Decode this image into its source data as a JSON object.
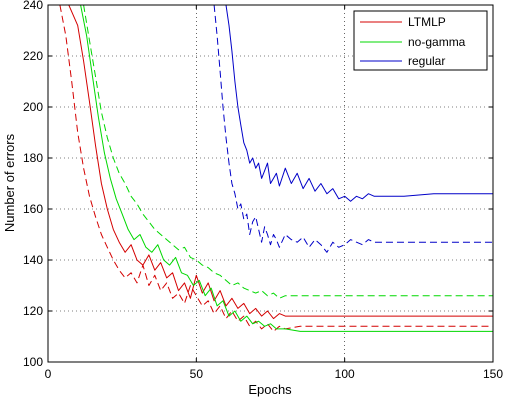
{
  "chart_data": {
    "type": "line",
    "title": "",
    "xlabel": "Epochs",
    "ylabel": "Number of errors",
    "xlim": [
      0,
      150
    ],
    "ylim": [
      100,
      240
    ],
    "xticks": [
      "0",
      "50",
      "100",
      "150"
    ],
    "yticks": [
      "100",
      "120",
      "140",
      "160",
      "180",
      "200",
      "220",
      "240"
    ],
    "grid": true,
    "legend_position": "top-right",
    "legend": [
      {
        "label": "LTMLP",
        "color": "#d40000"
      },
      {
        "label": "no-gamma",
        "color": "#00d800"
      },
      {
        "label": "regular",
        "color": "#0000c8"
      }
    ],
    "series": [
      {
        "name": "LTMLP",
        "style": "solid",
        "color": "#d40000",
        "x": [
          7,
          10,
          12,
          14,
          16,
          18,
          20,
          22,
          24,
          26,
          28,
          30,
          32,
          34,
          36,
          38,
          40,
          42,
          44,
          46,
          48,
          50,
          52,
          54,
          56,
          58,
          60,
          62,
          64,
          66,
          68,
          70,
          72,
          74,
          76,
          78,
          80,
          85,
          90,
          95,
          100,
          110,
          120,
          130,
          140,
          150
        ],
        "y": [
          240,
          232,
          218,
          202,
          185,
          170,
          160,
          152,
          147,
          143,
          146,
          140,
          138,
          142,
          136,
          139,
          133,
          135,
          128,
          131,
          125,
          134,
          127,
          131,
          124,
          128,
          122,
          125,
          121,
          123,
          119,
          121,
          118,
          120,
          117,
          119,
          118,
          118,
          118,
          118,
          118,
          118,
          118,
          118,
          118,
          118
        ]
      },
      {
        "name": "LTMLP",
        "style": "dashed",
        "color": "#d40000",
        "x": [
          4,
          6,
          8,
          10,
          12,
          14,
          16,
          18,
          20,
          22,
          24,
          26,
          28,
          30,
          32,
          34,
          36,
          38,
          40,
          42,
          44,
          46,
          48,
          50,
          52,
          54,
          56,
          58,
          60,
          62,
          64,
          66,
          68,
          70,
          72,
          74,
          76,
          78,
          80,
          85,
          90,
          95,
          100,
          110,
          120,
          130,
          140,
          150
        ],
        "y": [
          240,
          228,
          210,
          190,
          176,
          165,
          157,
          150,
          145,
          140,
          136,
          133,
          135,
          131,
          138,
          130,
          134,
          128,
          131,
          125,
          127,
          123,
          130,
          126,
          122,
          124,
          119,
          122,
          117,
          120,
          116,
          118,
          114,
          116,
          113,
          115,
          112,
          114,
          113,
          114,
          114,
          114,
          114,
          114,
          114,
          114,
          114,
          114
        ]
      },
      {
        "name": "no-gamma",
        "style": "solid",
        "color": "#00d800",
        "x": [
          11,
          13,
          15,
          17,
          19,
          21,
          23,
          25,
          27,
          29,
          31,
          33,
          35,
          37,
          39,
          41,
          43,
          45,
          47,
          49,
          51,
          53,
          55,
          57,
          59,
          61,
          63,
          65,
          67,
          69,
          71,
          73,
          75,
          77,
          80,
          85,
          90,
          95,
          100,
          110,
          120,
          130,
          140,
          150
        ],
        "y": [
          240,
          228,
          212,
          196,
          182,
          172,
          164,
          158,
          152,
          148,
          150,
          145,
          143,
          146,
          140,
          138,
          141,
          135,
          134,
          130,
          132,
          126,
          129,
          122,
          124,
          118,
          120,
          116,
          118,
          115,
          116,
          114,
          115,
          113,
          113,
          112,
          112,
          112,
          112,
          112,
          112,
          112,
          112,
          112
        ]
      },
      {
        "name": "no-gamma",
        "style": "dashed",
        "color": "#00d800",
        "x": [
          12,
          14,
          16,
          18,
          20,
          22,
          24,
          26,
          28,
          30,
          32,
          34,
          36,
          38,
          40,
          42,
          44,
          46,
          48,
          50,
          52,
          54,
          56,
          58,
          60,
          62,
          64,
          66,
          68,
          70,
          72,
          74,
          76,
          78,
          80,
          85,
          90,
          95,
          100,
          110,
          120,
          130,
          140,
          150
        ],
        "y": [
          240,
          226,
          212,
          198,
          188,
          180,
          174,
          170,
          165,
          162,
          158,
          155,
          152,
          150,
          148,
          146,
          144,
          145,
          141,
          140,
          138,
          137,
          135,
          134,
          132,
          130,
          131,
          129,
          128,
          127,
          128,
          126,
          127,
          125,
          126,
          126,
          126,
          126,
          126,
          126,
          126,
          126,
          126,
          126
        ]
      },
      {
        "name": "regular",
        "style": "solid",
        "color": "#0000c8",
        "x": [
          60,
          61,
          62,
          63,
          64,
          65,
          66,
          67,
          68,
          69,
          70,
          71,
          72,
          73,
          74,
          75,
          76,
          77,
          78,
          80,
          82,
          84,
          86,
          88,
          90,
          92,
          94,
          96,
          98,
          100,
          102,
          104,
          106,
          108,
          110,
          115,
          120,
          130,
          140,
          150
        ],
        "y": [
          240,
          232,
          222,
          210,
          200,
          193,
          186,
          183,
          178,
          180,
          176,
          178,
          172,
          175,
          178,
          170,
          172,
          174,
          169,
          176,
          170,
          174,
          168,
          172,
          167,
          170,
          166,
          168,
          164,
          165,
          163,
          165,
          164,
          166,
          165,
          165,
          165,
          166,
          166,
          166
        ]
      },
      {
        "name": "regular",
        "style": "dashed",
        "color": "#0000c8",
        "x": [
          56,
          57,
          58,
          59,
          60,
          61,
          62,
          63,
          64,
          65,
          66,
          67,
          68,
          69,
          70,
          71,
          72,
          73,
          74,
          75,
          76,
          77,
          78,
          80,
          82,
          84,
          86,
          88,
          90,
          92,
          94,
          96,
          98,
          100,
          102,
          104,
          106,
          108,
          110,
          115,
          120,
          130,
          140,
          150
        ],
        "y": [
          240,
          228,
          214,
          200,
          188,
          178,
          170,
          166,
          160,
          162,
          156,
          158,
          150,
          155,
          157,
          152,
          147,
          153,
          150,
          146,
          150,
          148,
          145,
          150,
          148,
          147,
          149,
          145,
          148,
          146,
          143,
          147,
          145,
          146,
          148,
          147,
          146,
          148,
          147,
          147,
          147,
          147,
          147,
          147
        ]
      }
    ]
  }
}
